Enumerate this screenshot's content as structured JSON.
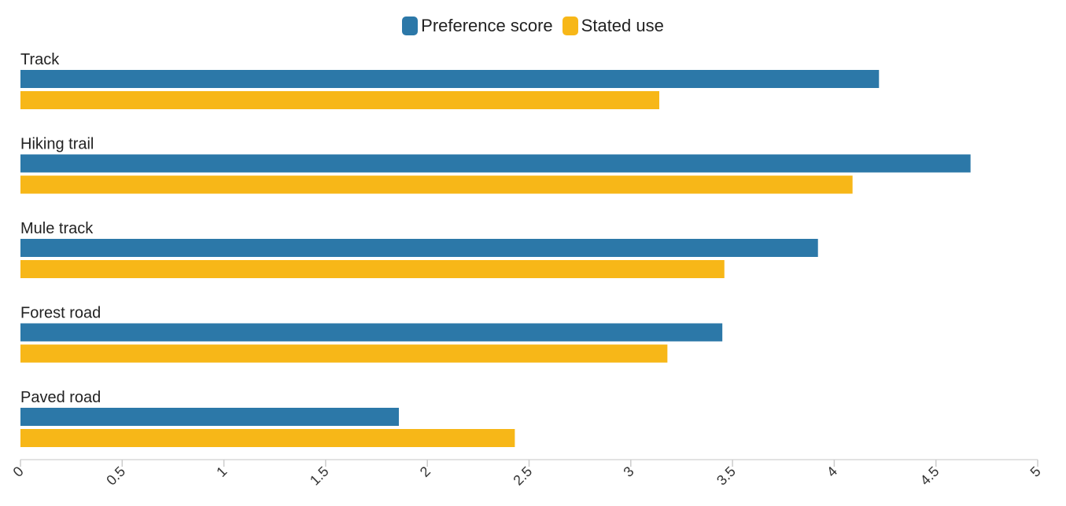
{
  "legend": [
    {
      "label": "Preference score",
      "color": "#2c78a8"
    },
    {
      "label": "Stated use",
      "color": "#f7b718"
    }
  ],
  "chart_data": {
    "type": "bar",
    "orientation": "horizontal",
    "categories": [
      "Track",
      "Hiking trail",
      "Mule track",
      "Forest road",
      "Paved road"
    ],
    "series": [
      {
        "name": "Preference score",
        "color": "#2c78a8",
        "values": [
          4.22,
          4.67,
          3.92,
          3.45,
          1.86
        ]
      },
      {
        "name": "Stated use",
        "color": "#f7b718",
        "values": [
          3.14,
          4.09,
          3.46,
          3.18,
          2.43
        ]
      }
    ],
    "xlim": [
      0,
      5
    ],
    "ticks": [
      "0",
      "0.5",
      "1",
      "1.5",
      "2",
      "2.5",
      "3",
      "3.5",
      "4",
      "4.5",
      "5"
    ],
    "legend_position": "top-center",
    "grid": false
  }
}
